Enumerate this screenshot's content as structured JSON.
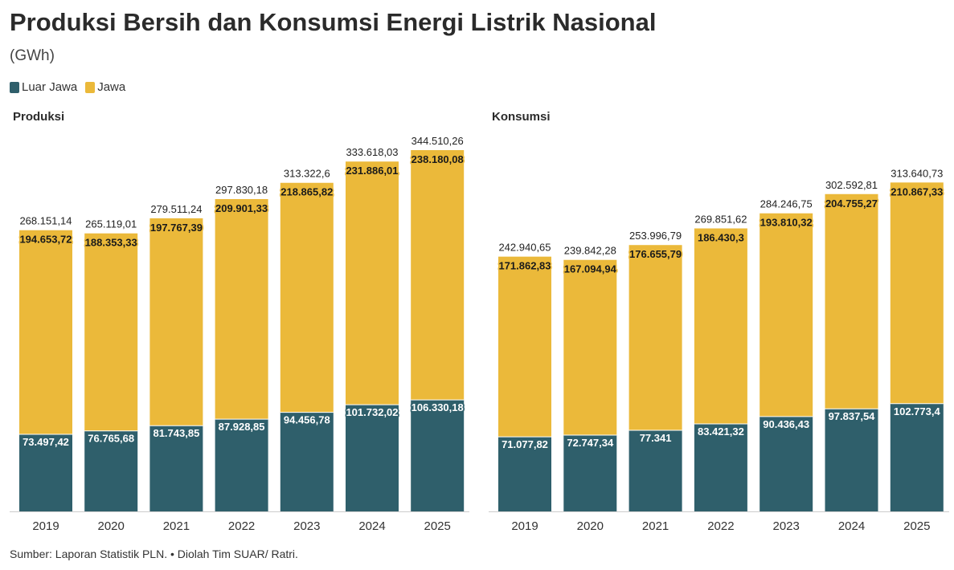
{
  "header": {
    "title": "Produksi Bersih dan Konsumsi Energi Listrik Nasional",
    "subtitle": "(GWh)"
  },
  "legend": [
    {
      "label": "Luar Jawa",
      "color": "#2f5f6b"
    },
    {
      "label": "Jawa",
      "color": "#ebb93a"
    }
  ],
  "footer": {
    "source": "Sumber: Laporan Statistik PLN. • Diolah Tim SUAR/ Ratri."
  },
  "colors": {
    "luar_jawa": "#2f5f6b",
    "jawa": "#ebb93a",
    "axis": "#cccccc"
  },
  "chart_data": [
    {
      "type": "bar",
      "stacked": true,
      "title": "Produksi",
      "categories": [
        "2019",
        "2020",
        "2021",
        "2022",
        "2023",
        "2024",
        "2025"
      ],
      "series": [
        {
          "name": "Luar Jawa",
          "values": [
            73497.42,
            76765.68,
            81743.85,
            87928.85,
            94456.78,
            101732.02,
            106330.18
          ],
          "labels": [
            "73.497,42",
            "76.765,68",
            "81.743,85",
            "87.928,85",
            "94.456,78",
            "101.732,02",
            "106.330,18"
          ]
        },
        {
          "name": "Jawa",
          "values": [
            194653.72,
            188353.33,
            197767.39,
            209901.33,
            218865.82,
            231886.01,
            238180.08
          ],
          "labels": [
            "194.653,72",
            "188.353,33",
            "197.767,39",
            "209.901,33",
            "218.865,82",
            "231.886,01",
            "238.180,08"
          ]
        }
      ],
      "totals": [
        268151.14,
        265119.01,
        279511.24,
        297830.18,
        313322.6,
        333618.03,
        344510.26
      ],
      "total_labels": [
        "268.151,14",
        "265.119,01",
        "279.511,24",
        "297.830,18",
        "313.322,6",
        "333.618,03",
        "344.510,26"
      ],
      "ylim": [
        0,
        344510.26
      ],
      "grid": false
    },
    {
      "type": "bar",
      "stacked": true,
      "title": "Konsumsi",
      "categories": [
        "2019",
        "2020",
        "2021",
        "2022",
        "2023",
        "2024",
        "2025"
      ],
      "series": [
        {
          "name": "Luar Jawa",
          "values": [
            71077.82,
            72747.34,
            77341,
            83421.32,
            90436.43,
            97837.54,
            102773.4
          ],
          "labels": [
            "71.077,82",
            "72.747,34",
            "77.341",
            "83.421,32",
            "90.436,43",
            "97.837,54",
            "102.773,4"
          ]
        },
        {
          "name": "Jawa",
          "values": [
            171862.83,
            167094.94,
            176655.79,
            186430.3,
            193810.32,
            204755.27,
            210867.33
          ],
          "labels": [
            "171.862,83",
            "167.094,94",
            "176.655,79",
            "186.430,3",
            "193.810,32",
            "204.755,27",
            "210.867,33"
          ]
        }
      ],
      "totals": [
        242940.65,
        239842.28,
        253996.79,
        269851.62,
        284246.75,
        302592.81,
        313640.73
      ],
      "total_labels": [
        "242.940,65",
        "239.842,28",
        "253.996,79",
        "269.851,62",
        "284.246,75",
        "302.592,81",
        "313.640,73"
      ],
      "ylim": [
        0,
        344510.26
      ],
      "grid": false
    }
  ]
}
